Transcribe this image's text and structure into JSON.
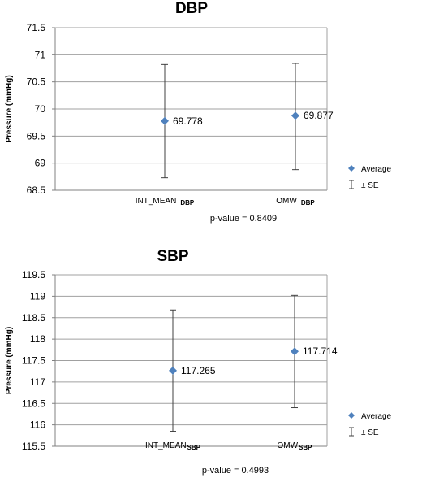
{
  "chart_data": [
    {
      "type": "scatter",
      "title": "DBP",
      "ylabel": "Pressure (mmHg)",
      "xlabel": "",
      "ylim": [
        68.5,
        71.5
      ],
      "yticks": [
        "68.5",
        "69",
        "69.5",
        "70",
        "70.5",
        "71",
        "71.5"
      ],
      "grid": true,
      "categories": [
        {
          "name": "INT_MEAN",
          "sub": "DBP"
        },
        {
          "name": "OMW",
          "sub": "DBP"
        }
      ],
      "series": [
        {
          "name": "Average",
          "values": [
            69.778,
            69.877
          ],
          "labels": [
            "69.778",
            "69.877"
          ]
        }
      ],
      "error_bars": [
        {
          "low": 68.73,
          "high": 70.82
        },
        {
          "low": 68.88,
          "high": 70.84
        }
      ],
      "legend": {
        "position": "right",
        "items": [
          "Average",
          "± SE"
        ]
      },
      "annotation": "p-value = 0.8409"
    },
    {
      "type": "scatter",
      "title": "SBP",
      "ylabel": "Pressure (mmHg)",
      "xlabel": "",
      "ylim": [
        115.5,
        119.5
      ],
      "yticks": [
        "115.5",
        "116",
        "116.5",
        "117",
        "117.5",
        "118",
        "118.5",
        "119",
        "119.5"
      ],
      "grid": true,
      "categories": [
        {
          "name": "INT_MEAN",
          "sub": "SBP"
        },
        {
          "name": "OMW",
          "sub": "SBP"
        }
      ],
      "series": [
        {
          "name": "Average",
          "values": [
            117.265,
            117.714
          ],
          "labels": [
            "117.265",
            "117.714"
          ]
        }
      ],
      "error_bars": [
        {
          "low": 115.85,
          "high": 118.68
        },
        {
          "low": 116.4,
          "high": 119.02
        }
      ],
      "legend": {
        "position": "right",
        "items": [
          "Average",
          "± SE"
        ]
      },
      "annotation": "p-value = 0.4993"
    }
  ],
  "colors": {
    "marker": "#4f81bd",
    "grid": "#a0a0a0",
    "axis": "#808080",
    "errorbar": "#404040"
  }
}
